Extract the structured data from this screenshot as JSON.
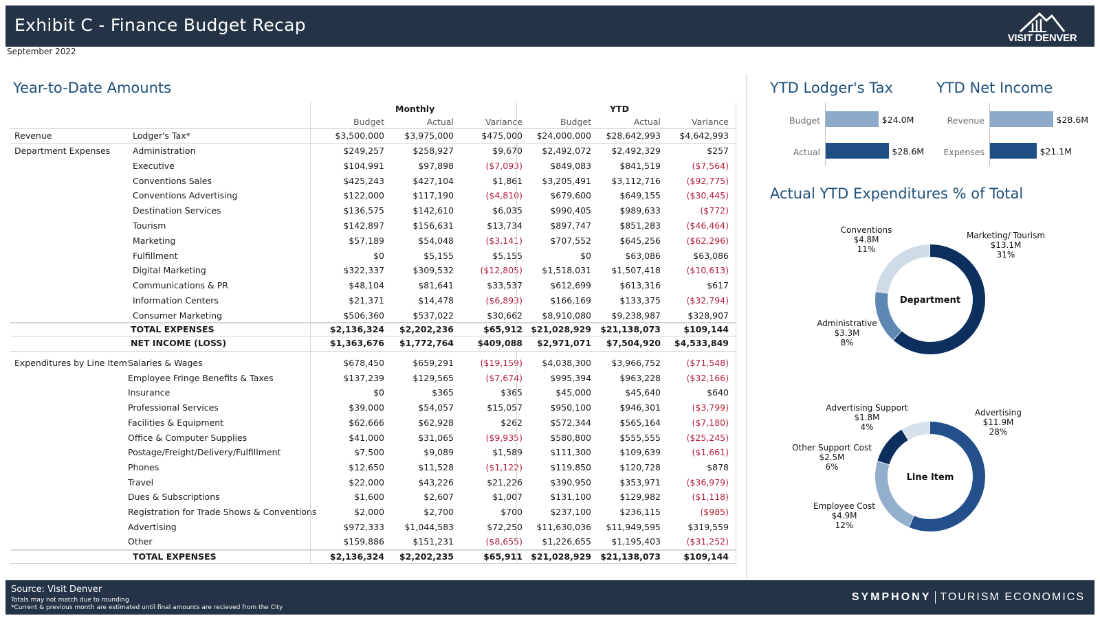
{
  "header": {
    "title": "Exhibit C - Finance Budget Recap",
    "logo_text": "VISIT DENVER",
    "date": "September 2022"
  },
  "sections": {
    "ytd_amounts": "Year-to-Date Amounts",
    "lodgers_tax": "YTD Lodger's Tax",
    "net_income": "YTD Net Income",
    "expenditures": "Actual YTD Expenditures % of Total"
  },
  "table": {
    "group_monthly": "Monthly",
    "group_ytd": "YTD",
    "col_headers": [
      "Budget",
      "Actual",
      "Variance",
      "Budget",
      "Actual",
      "Variance"
    ],
    "revenue": {
      "category": "Revenue",
      "label": "Lodger's Tax*",
      "values": [
        "$3,500,000",
        "$3,975,000",
        "$475,000",
        "$24,000,000",
        "$28,642,993",
        "$4,642,993"
      ]
    },
    "dept_category": "Department Expenses",
    "dept_rows": [
      {
        "label": "Administration",
        "values": [
          "$249,257",
          "$258,927",
          "$9,670",
          "$2,492,072",
          "$2,492,329",
          "$257"
        ]
      },
      {
        "label": "Executive",
        "values": [
          "$104,991",
          "$97,898",
          "($7,093)",
          "$849,083",
          "$841,519",
          "($7,564)"
        ]
      },
      {
        "label": "Conventions Sales",
        "values": [
          "$425,243",
          "$427,104",
          "$1,861",
          "$3,205,491",
          "$3,112,716",
          "($92,775)"
        ]
      },
      {
        "label": "Conventions Advertising",
        "values": [
          "$122,000",
          "$117,190",
          "($4,810)",
          "$679,600",
          "$649,155",
          "($30,445)"
        ]
      },
      {
        "label": "Destination Services",
        "values": [
          "$136,575",
          "$142,610",
          "$6,035",
          "$990,405",
          "$989,633",
          "($772)"
        ]
      },
      {
        "label": "Tourism",
        "values": [
          "$142,897",
          "$156,631",
          "$13,734",
          "$897,747",
          "$851,283",
          "($46,464)"
        ]
      },
      {
        "label": "Marketing",
        "values": [
          "$57,189",
          "$54,048",
          "($3,141)",
          "$707,552",
          "$645,256",
          "($62,296)"
        ]
      },
      {
        "label": "Fulfillment",
        "values": [
          "$0",
          "$5,155",
          "$5,155",
          "$0",
          "$63,086",
          "$63,086"
        ]
      },
      {
        "label": "Digital Marketing",
        "values": [
          "$322,337",
          "$309,532",
          "($12,805)",
          "$1,518,031",
          "$1,507,418",
          "($10,613)"
        ]
      },
      {
        "label": "Communications & PR",
        "values": [
          "$48,104",
          "$81,641",
          "$33,537",
          "$612,699",
          "$613,316",
          "$617"
        ]
      },
      {
        "label": "Information Centers",
        "values": [
          "$21,371",
          "$14,478",
          "($6,893)",
          "$166,169",
          "$133,375",
          "($32,794)"
        ]
      },
      {
        "label": "Consumer Marketing",
        "values": [
          "$506,360",
          "$537,022",
          "$30,662",
          "$8,910,080",
          "$9,238,987",
          "$328,907"
        ]
      }
    ],
    "dept_total": {
      "label": "TOTAL EXPENSES",
      "values": [
        "$2,136,324",
        "$2,202,236",
        "$65,912",
        "$21,028,929",
        "$21,138,073",
        "$109,144"
      ]
    },
    "net_income": {
      "label": "NET INCOME (LOSS)",
      "values": [
        "$1,363,676",
        "$1,772,764",
        "$409,088",
        "$2,971,071",
        "$7,504,920",
        "$4,533,849"
      ]
    },
    "line_category": "Expenditures by Line Item",
    "line_rows": [
      {
        "label": "Salaries & Wages",
        "values": [
          "$678,450",
          "$659,291",
          "($19,159)",
          "$4,038,300",
          "$3,966,752",
          "($71,548)"
        ]
      },
      {
        "label": "Employee Fringe Benefits & Taxes",
        "values": [
          "$137,239",
          "$129,565",
          "($7,674)",
          "$995,394",
          "$963,228",
          "($32,166)"
        ]
      },
      {
        "label": "Insurance",
        "values": [
          "$0",
          "$365",
          "$365",
          "$45,000",
          "$45,640",
          "$640"
        ]
      },
      {
        "label": "Professional Services",
        "values": [
          "$39,000",
          "$54,057",
          "$15,057",
          "$950,100",
          "$946,301",
          "($3,799)"
        ]
      },
      {
        "label": "Facilities & Equipment",
        "values": [
          "$62,666",
          "$62,928",
          "$262",
          "$572,344",
          "$565,164",
          "($7,180)"
        ]
      },
      {
        "label": "Office & Computer Supplies",
        "values": [
          "$41,000",
          "$31,065",
          "($9,935)",
          "$580,800",
          "$555,555",
          "($25,245)"
        ]
      },
      {
        "label": "Postage/Freight/Delivery/Fulfillment",
        "values": [
          "$7,500",
          "$9,089",
          "$1,589",
          "$111,300",
          "$109,639",
          "($1,661)"
        ]
      },
      {
        "label": "Phones",
        "values": [
          "$12,650",
          "$11,528",
          "($1,122)",
          "$119,850",
          "$120,728",
          "$878"
        ]
      },
      {
        "label": "Travel",
        "values": [
          "$22,000",
          "$43,226",
          "$21,226",
          "$390,950",
          "$353,971",
          "($36,979)"
        ]
      },
      {
        "label": "Dues & Subscriptions",
        "values": [
          "$1,600",
          "$2,607",
          "$1,007",
          "$131,100",
          "$129,982",
          "($1,118)"
        ]
      },
      {
        "label": "Registration for Trade Shows & Conventions",
        "values": [
          "$2,000",
          "$2,700",
          "$700",
          "$237,100",
          "$236,115",
          "($985)"
        ]
      },
      {
        "label": "Advertising",
        "values": [
          "$972,333",
          "$1,044,583",
          "$72,250",
          "$11,630,036",
          "$11,949,595",
          "$319,559"
        ]
      },
      {
        "label": "Other",
        "values": [
          "$159,886",
          "$151,231",
          "($8,655)",
          "$1,226,655",
          "$1,195,403",
          "($31,252)"
        ]
      }
    ],
    "line_total": {
      "label": "TOTAL EXPENSES",
      "values": [
        "$2,136,324",
        "$2,202,235",
        "$65,911",
        "$21,028,929",
        "$21,138,073",
        "$109,144"
      ]
    }
  },
  "chart_data": [
    {
      "type": "bar",
      "orientation": "horizontal",
      "title": "YTD Lodger's Tax",
      "categories": [
        "Budget",
        "Actual"
      ],
      "values": [
        24.0,
        28.6
      ],
      "value_labels": [
        "$24.0M",
        "$28.6M"
      ],
      "colors": [
        "#8eaacb",
        "#1f4e85"
      ]
    },
    {
      "type": "bar",
      "orientation": "horizontal",
      "title": "YTD Net Income",
      "categories": [
        "Revenue",
        "Expenses"
      ],
      "values": [
        28.6,
        21.1
      ],
      "value_labels": [
        "$28.6M",
        "$21.1M"
      ],
      "colors": [
        "#8eaacb",
        "#1f4e85"
      ]
    },
    {
      "type": "pie",
      "hole": true,
      "center_label": "Department",
      "slices": [
        {
          "name": "Marketing/ Tourism",
          "value_label": "$13.1M",
          "pct_label": "31%",
          "value": 13.1,
          "color": "#0c2f5e"
        },
        {
          "name": "Administrative",
          "value_label": "$3.3M",
          "pct_label": "8%",
          "value": 3.3,
          "color": "#5f87b4"
        },
        {
          "name": "Conventions",
          "value_label": "$4.8M",
          "pct_label": "11%",
          "value": 4.8,
          "color": "#cfdce8"
        }
      ]
    },
    {
      "type": "pie",
      "hole": true,
      "center_label": "Line Item",
      "slices": [
        {
          "name": "Advertising",
          "value_label": "$11.9M",
          "pct_label": "28%",
          "value": 11.9,
          "color": "#23508a"
        },
        {
          "name": "Employee Cost",
          "value_label": "$4.9M",
          "pct_label": "12%",
          "value": 4.9,
          "color": "#93afcd"
        },
        {
          "name": "Other Support Cost",
          "value_label": "$2.5M",
          "pct_label": "6%",
          "value": 2.5,
          "color": "#0c2f5e"
        },
        {
          "name": "Advertising Support",
          "value_label": "$1.8M",
          "pct_label": "4%",
          "value": 1.8,
          "color": "#d6e1ea"
        }
      ]
    }
  ],
  "footer": {
    "source": "Source: Visit Denver",
    "note1": "Totals may not match due to rounding",
    "note2": "*Current & previous month are estimated until final amounts are recieved from the City",
    "brand_bold": "SYMPHONY",
    "brand_rest": "TOURISM ECONOMICS"
  }
}
